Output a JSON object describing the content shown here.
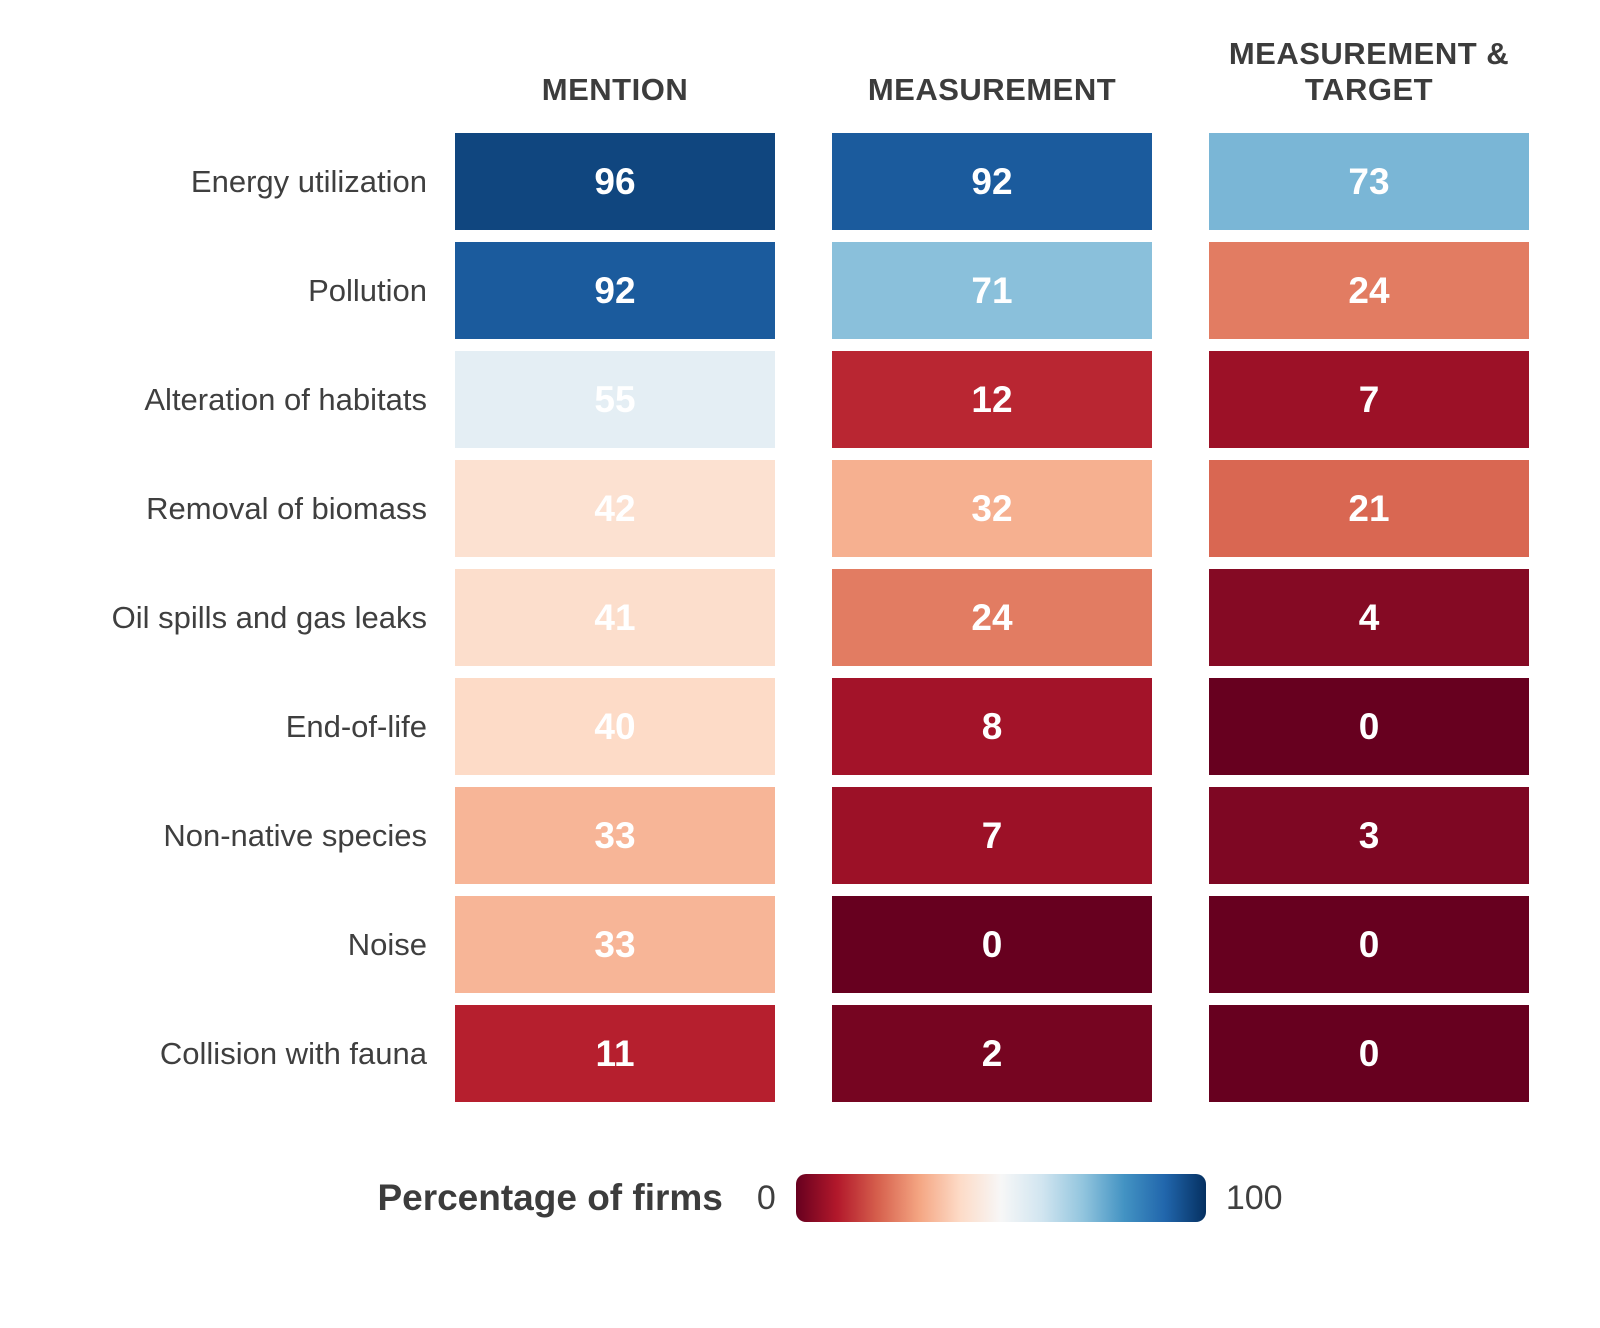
{
  "chart_data": {
    "type": "heatmap",
    "title": "",
    "columns": [
      "MENTION",
      "MEASUREMENT",
      "MEASUREMENT & TARGET"
    ],
    "rows": [
      "Energy utilization",
      "Pollution",
      "Alteration of habitats",
      "Removal of biomass",
      "Oil spills and gas leaks",
      "End-of-life",
      "Non-native species",
      "Noise",
      "Collision with fauna"
    ],
    "values": [
      [
        96,
        92,
        73
      ],
      [
        92,
        71,
        24
      ],
      [
        55,
        12,
        7
      ],
      [
        42,
        32,
        21
      ],
      [
        41,
        24,
        4
      ],
      [
        40,
        8,
        0
      ],
      [
        33,
        7,
        3
      ],
      [
        33,
        0,
        0
      ],
      [
        11,
        2,
        0
      ]
    ],
    "value_range": [
      0,
      100
    ],
    "colormap": "RdBu",
    "colormap_stops": [
      "#67001f",
      "#b2182b",
      "#d6604d",
      "#f4a582",
      "#fddbc7",
      "#f7f7f7",
      "#d1e5f0",
      "#92c5de",
      "#4393c3",
      "#2166ac",
      "#053061"
    ],
    "legend_position": "bottom"
  },
  "legend": {
    "label": "Percentage of firms",
    "min_label": "0",
    "max_label": "100"
  },
  "colors": {
    "header_text": "#3c3c3c",
    "label_text": "#3f3f3f",
    "cell_text": "#ffffff",
    "background": "#ffffff"
  }
}
